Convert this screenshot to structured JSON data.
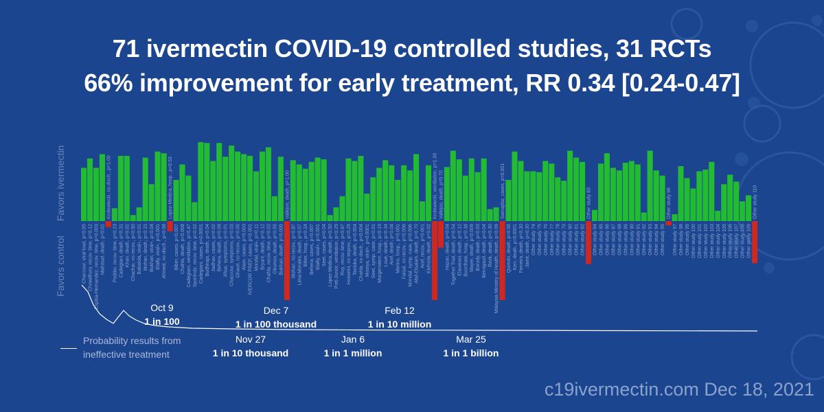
{
  "title_line1": "71 ivermectin COVID-19 controlled studies, 31 RCTs",
  "title_line2": "66% improvement for early treatment, RR 0.34 [0.24-0.47]",
  "axis": {
    "favors_ivermectin": "Favors ivermectin",
    "favors_control": "Favors control"
  },
  "legend": {
    "line1": "Probability results from",
    "line2": "ineffective treatment"
  },
  "annotations": [
    {
      "date": "Oct 9",
      "prob": "1 in 100"
    },
    {
      "date": "Nov 27",
      "prob": "1 in 10 thousand"
    },
    {
      "date": "Dec 7",
      "prob": "1 in 100 thousand"
    },
    {
      "date": "Jan 6",
      "prob": "1 in 1 million"
    },
    {
      "date": "Feb 12",
      "prob": "1 in 10 million"
    },
    {
      "date": "Mar 25",
      "prob": "1 in 1 billion"
    }
  ],
  "footer": "c19ivermectin.com Dec 18, 2021",
  "colors": {
    "background": "#1c4590",
    "favor": "#22bb33",
    "against": "#d0281e"
  },
  "chart_data": {
    "type": "bar",
    "values": [
      0.62,
      0.73,
      0.62,
      0.78,
      -0.07,
      0.15,
      0.76,
      0.76,
      0.07,
      0.16,
      0.74,
      0.43,
      0.81,
      0.79,
      -0.12,
      0.48,
      0.66,
      0.53,
      0.22,
      0.92,
      0.91,
      0.7,
      0.91,
      0.75,
      0.88,
      0.81,
      0.78,
      0.76,
      0.58,
      0.81,
      0.86,
      0.29,
      0.75,
      -0.92,
      0.71,
      0.66,
      0.61,
      0.69,
      0.74,
      0.72,
      0.07,
      0.16,
      0.29,
      0.73,
      0.7,
      0.76,
      0.32,
      0.51,
      0.62,
      0.71,
      0.65,
      0.48,
      0.65,
      0.59,
      0.78,
      0.23,
      0.65,
      -0.92,
      -0.31,
      0.63,
      0.82,
      0.72,
      0.53,
      0.73,
      0.57,
      0.73,
      0.14,
      0.16,
      -0.92,
      0.48,
      0.81,
      0.7,
      0.58,
      0.58,
      0.57,
      0.7,
      0.67,
      0.51,
      0.47,
      0.82,
      0.74,
      0.69,
      -0.5,
      0.13,
      0.67,
      0.79,
      0.62,
      0.59,
      0.68,
      0.7,
      0.66,
      0.1,
      0.82,
      0.59,
      0.53,
      -0.05,
      0.08,
      0.64,
      0.5,
      0.38,
      0.58,
      0.6,
      0.69,
      0.12,
      0.43,
      0.54,
      0.46,
      0.23,
      0.3,
      -0.49
    ],
    "bar_labels": [
      "Chaccour, viral load, p=0.55",
      "Chowdhury, recov. time, p=0.12",
      "Espitia-Hernandez, recov. time, p=0.003",
      "Mahmud, death, p=0.01",
      "Krolewiecki, no disch., p=1.00",
      "Podder, recov. time, p=0.23",
      "Cadegiani, death, p=0.31",
      "Khan, death, p=0.02",
      "Chachar, no recov., p=0.50",
      "Babalola, viral+, p=0.01",
      "Mohan, death, p=0.15",
      "Bukhari, viral+, p=0.04",
      "Elalfy, viral+, p=0.001",
      "Ahmed, no disch., p=0.08",
      "Lopez-Medina, hosp., p=0.53",
      "Biber, cases, p=0.007",
      "Chahla, death, p=0.008",
      "Cadegiani, ventilation, p=0.47",
      "Sponholz, recov. time, p=0.02",
      "Cadegiani, cases, p=0.0001",
      "Budhiraja, death, p=0.04",
      "Jadhav, cases, p=0.02",
      "Behera, death, p=0.08",
      "Afsar, symptoms, p=0.01",
      "Chaccour, symptoms, p=0.03",
      "Ghauri, no recov., p=0.05",
      "Alam, cases, p=0.003",
      "IVERCOR PREP, cases, p=0.001",
      "Mondal, viral+, p=0.11",
      "Bryant, death, p=0.12",
      "Chahla, recov. time, p=0.02",
      "Okumus, death, p=0.55",
      "Bukhari, death, p=0.005",
      "Vallejos, death, p=1.00",
      "Mohan, no recov., p=0.87",
      "Lima-Morales, death, p=0.07",
      "Biber, hosp., p=0.24",
      "Behera, cases, p=0.007",
      "Elalfy, viral+, p=0.001",
      "Seet, cases, p=0.04",
      "Lopez-Medina, death, p=0.50",
      "Pott-Junior, ventilation, p=0.29",
      "Roy, recov. time, p=0.87",
      "Hosseini, no improv., p=0.29",
      "Tanioka, death, p=0.004",
      "Chahla, no disch., p=0.004",
      "Mourya, viral+, p=0.0001",
      "Seet, symp. case, p=0.01",
      "Morgenstern, hosp., p=0.19",
      "Loue, death, p=0.34",
      "Aref, death, p=0.04",
      "Merino, hosp., p=0.001",
      "Faisal, no recov., p=0.006",
      "Mondal, symp. case, p=0.006",
      "Abd-Elsalam, death, p=0.70",
      "Aref, recov., p=0.001",
      "Kishoria, death, p=0.02",
      "Krolewiecki, ventilation, p=1.00",
      "Vallejos, death, p=0.70",
      "Hazan, death, p=0.04",
      "Together Trial, death, p=0.54",
      "Elavarasi, death, p=0.12",
      "Buonfrate, hosp., p=0.38",
      "Mayer, death, p=0.009",
      "Borody, death, p=0.03",
      "Bernigaud, death, p=0.04",
      "Rezk, death, p=0.30",
      "Malaysia Ministry of Health, death, p=0.09",
      "Samajdar, cases, p=0.001",
      "Qureshi, death, p=0.56",
      "Kerr, death, p=0.0001",
      "Ferreira, death, p=0.30",
      "Jamir, death, p=0.30",
      "Other study 74",
      "Other study 75",
      "Other study 76",
      "Other study 77",
      "Other study 78",
      "Other study 79",
      "Other study 80",
      "Other study 81",
      "Other study 82",
      "Other study 83",
      "Other study 84",
      "Other study 85",
      "Other study 86",
      "Other study 87",
      "Other study 88",
      "Other study 89",
      "Other study 90",
      "Other study 91",
      "Other study 92",
      "Other study 93",
      "Other study 94",
      "Other study 95",
      "Other study 96",
      "Other study 97",
      "Other study 98",
      "Other study 99",
      "Other study 100",
      "Other study 101",
      "Other study 102",
      "Other study 103",
      "Other study 104",
      "Other study 105",
      "Other study 106",
      "Other study 107",
      "Other study 108",
      "Other study 109",
      "Other study 110"
    ],
    "ylim": [
      -1,
      1
    ],
    "grid": false,
    "legend": "bottom-left"
  }
}
